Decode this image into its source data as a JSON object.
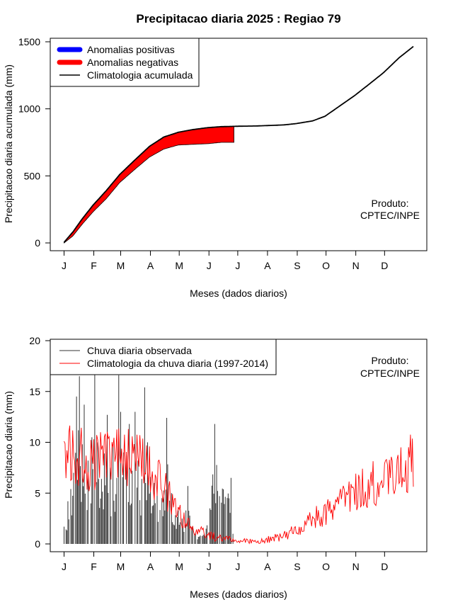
{
  "title": "Precipitacao diaria 2025 : Regiao 79",
  "month_labels": [
    "J",
    "F",
    "M",
    "A",
    "M",
    "J",
    "J",
    "A",
    "S",
    "O",
    "N",
    "D"
  ],
  "chart_data": [
    {
      "type": "area",
      "ylabel": "Precipitacao diaria acumulada (mm)",
      "xlabel": "Meses (dados diarios)",
      "ylim": [
        0,
        1500
      ],
      "y_ticks": [
        "0",
        "500",
        "1000",
        "1500"
      ],
      "grid": false,
      "legend_position": "top-left",
      "legend": [
        "Anomalias positivas",
        "Anomalias negativas",
        "Climatologia acumulada"
      ],
      "product_label_1": "Produto:",
      "product_label_2": "CPTEC/INPE",
      "colors": {
        "positive": "#0000ff",
        "negative": "#ff0000",
        "climatology": "#000000"
      },
      "climatology_cumulative": {
        "day": [
          1,
          10,
          20,
          31,
          45,
          59,
          75,
          90,
          105,
          120,
          135,
          151,
          165,
          181,
          200,
          212,
          230,
          243,
          260,
          273,
          290,
          304,
          320,
          334,
          350,
          365
        ],
        "value": [
          5,
          80,
          180,
          280,
          390,
          510,
          620,
          720,
          790,
          825,
          845,
          860,
          867,
          870,
          872,
          875,
          880,
          890,
          910,
          945,
          1030,
          1100,
          1190,
          1270,
          1380,
          1465
        ]
      },
      "observed_cumulative": {
        "day": [
          1,
          10,
          20,
          31,
          45,
          59,
          75,
          90,
          105,
          120,
          135,
          151,
          165,
          178
        ],
        "value": [
          0,
          50,
          140,
          230,
          330,
          450,
          550,
          640,
          700,
          730,
          735,
          740,
          750,
          750
        ]
      }
    },
    {
      "type": "bar",
      "ylabel": "Precipitacao diaria (mm)",
      "xlabel": "Meses (dados diarios)",
      "ylim": [
        0,
        20
      ],
      "y_ticks": [
        "0",
        "5",
        "10",
        "15",
        "20"
      ],
      "grid": false,
      "legend_position": "top-left",
      "legend": [
        "Chuva diaria observada",
        "Climatologia da chuva diaria (1997-2014)"
      ],
      "product_label_1": "Produto:",
      "product_label_2": "CPTEC/INPE",
      "colors": {
        "observed": "#333333",
        "climatology": "#ff0000"
      },
      "observed_daily_peaks": {
        "day": [
          1,
          5,
          8,
          11,
          14,
          17,
          20,
          22,
          26,
          30,
          33,
          36,
          40,
          43,
          46,
          49,
          52,
          56,
          58,
          60,
          63,
          66,
          69,
          72,
          75,
          78,
          82,
          85,
          88,
          91,
          95,
          98,
          103,
          108,
          113,
          120,
          124,
          130,
          138,
          149,
          158,
          175,
          177
        ],
        "value": [
          1.7,
          4.2,
          5.4,
          7.0,
          14.5,
          16.5,
          9.8,
          13.7,
          8.2,
          10.5,
          16.8,
          10.0,
          6.4,
          8.9,
          12.7,
          7.5,
          9.6,
          6.5,
          16.6,
          13.0,
          9.0,
          8.7,
          11.8,
          7.2,
          13.0,
          8.2,
          6.4,
          15.4,
          10.0,
          6.6,
          6.0,
          5.0,
          4.5,
          12.4,
          5.0,
          3.3,
          2.5,
          5.7,
          1.0,
          1.5,
          11.8,
          6.5,
          1.0
        ]
      },
      "climatology_daily": {
        "day": [
          1,
          10,
          20,
          31,
          45,
          59,
          75,
          90,
          105,
          120,
          135,
          151,
          165,
          181,
          200,
          212,
          230,
          243,
          260,
          273,
          290,
          304,
          320,
          334,
          350,
          365
        ],
        "value": [
          9.8,
          8.5,
          8.5,
          8.0,
          9.0,
          9.5,
          8.0,
          7.5,
          5.5,
          3.0,
          1.5,
          0.8,
          0.6,
          0.3,
          0.2,
          0.4,
          0.8,
          1.4,
          2.5,
          3.0,
          4.0,
          5.0,
          5.8,
          6.5,
          7.0,
          8.5
        ]
      }
    }
  ]
}
